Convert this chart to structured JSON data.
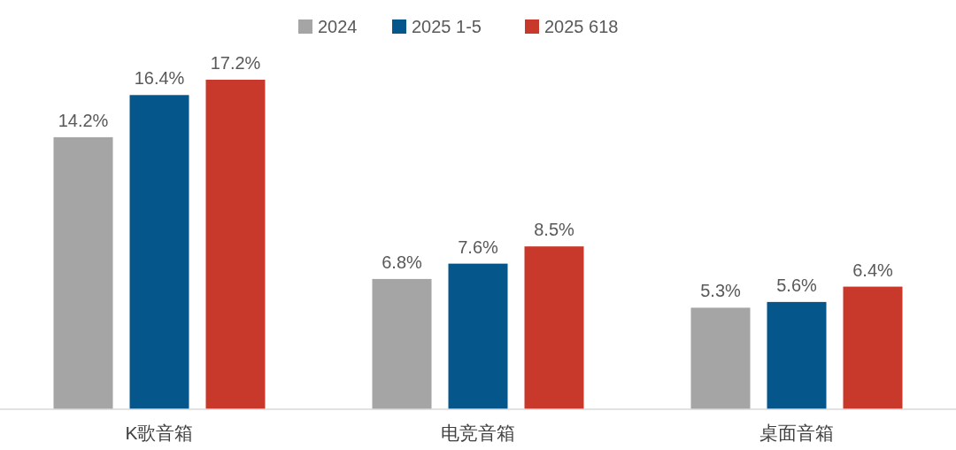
{
  "chart_data": {
    "type": "bar",
    "categories": [
      "K歌音箱",
      "电竞音箱",
      "桌面音箱"
    ],
    "series": [
      {
        "name": "2024",
        "color": "#a5a5a5",
        "values": [
          14.2,
          6.8,
          5.3
        ],
        "value_labels": [
          "14.2%",
          "6.8%",
          "5.3%"
        ]
      },
      {
        "name": "2025 1-5",
        "color": "#05568a",
        "values": [
          16.4,
          7.6,
          5.6
        ],
        "value_labels": [
          "16.4%",
          "7.6%",
          "5.6%"
        ]
      },
      {
        "name": "2025 618",
        "color": "#c8392b",
        "values": [
          17.2,
          8.5,
          6.4
        ],
        "value_labels": [
          "17.2%",
          "8.5%",
          "6.4%"
        ]
      }
    ],
    "legend": "top"
  }
}
